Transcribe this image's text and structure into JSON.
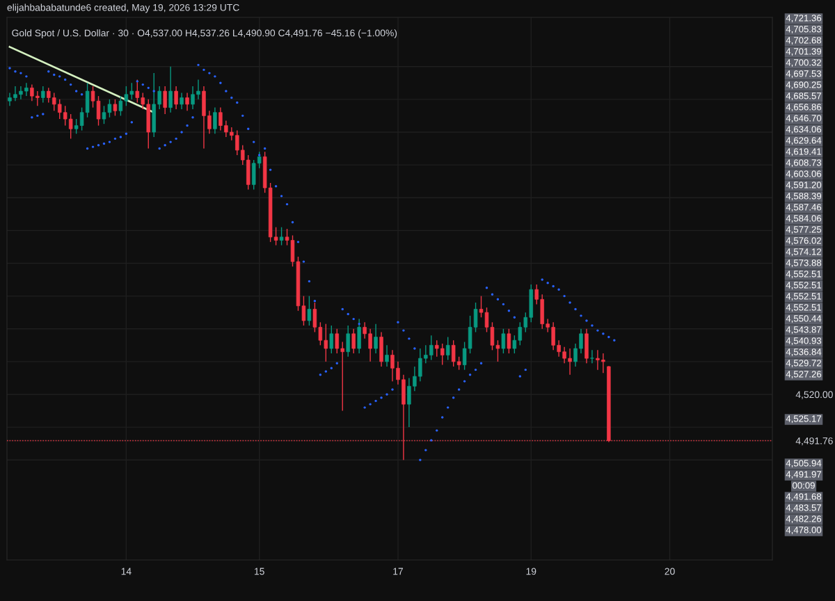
{
  "chart_data": {
    "type": "candlestick",
    "title": "Gold Spot / U.S. Dollar · 30 · O4,537.00 H4,537.26 L4,490.90 C4,491.76 −45.16 (−1.00%)",
    "subtitle": "elijahbababatunde6 created, May 19, 2026 13:29 UTC",
    "categories": [
      null,
      null,
      null,
      null,
      null,
      null,
      null,
      null,
      null,
      null,
      null,
      null,
      null,
      null,
      null,
      null,
      null,
      null,
      null,
      null,
      null,
      "14",
      null,
      null,
      null,
      null,
      null,
      null,
      null,
      null,
      null,
      null,
      null,
      null,
      null,
      null,
      null,
      null,
      null,
      null,
      null,
      null,
      null,
      null,
      null,
      "15",
      null,
      null,
      null,
      null,
      null,
      null,
      null,
      null,
      null,
      null,
      null,
      null,
      null,
      null,
      null,
      null,
      null,
      null,
      null,
      null,
      null,
      null,
      null,
      null,
      "17",
      null,
      null,
      null,
      null,
      null,
      null,
      null,
      null,
      null,
      null,
      null,
      null,
      null,
      null,
      null,
      null,
      null,
      null,
      null,
      null,
      null,
      null,
      null,
      "19",
      null,
      null,
      null,
      null,
      null,
      null,
      null,
      null,
      null,
      null,
      null,
      null,
      null,
      null,
      null,
      null,
      null,
      null,
      null,
      null,
      null,
      null,
      null,
      null,
      "20",
      null,
      null,
      null,
      null,
      null,
      null,
      null,
      null,
      null,
      null,
      null,
      null,
      null,
      null,
      null,
      null,
      null,
      null
    ],
    "ohlc": [
      [
        4699,
        4704,
        4696,
        4701
      ],
      [
        4701,
        4708,
        4699,
        4703
      ],
      [
        4703,
        4708,
        4700,
        4705
      ],
      [
        4705,
        4710,
        4702,
        4707
      ],
      [
        4707,
        4709,
        4699,
        4702
      ],
      [
        4702,
        4705,
        4696,
        4701
      ],
      [
        4701,
        4708,
        4698,
        4705
      ],
      [
        4705,
        4707,
        4698,
        4701
      ],
      [
        4701,
        4704,
        4693,
        4697
      ],
      [
        4697,
        4700,
        4688,
        4692
      ],
      [
        4692,
        4696,
        4684,
        4688
      ],
      [
        4688,
        4691,
        4676,
        4682
      ],
      [
        4682,
        4688,
        4679,
        4684
      ],
      [
        4684,
        4695,
        4681,
        4692
      ],
      [
        4692,
        4710,
        4689,
        4705
      ],
      [
        4705,
        4708,
        4695,
        4699
      ],
      [
        4699,
        4702,
        4684,
        4688
      ],
      [
        4688,
        4696,
        4685,
        4692
      ],
      [
        4692,
        4700,
        4689,
        4697
      ],
      [
        4697,
        4700,
        4690,
        4693
      ],
      [
        4693,
        4702,
        4690,
        4699
      ],
      [
        4699,
        4708,
        4696,
        4703
      ],
      [
        4703,
        4710,
        4700,
        4705
      ],
      [
        4705,
        4712,
        4698,
        4701
      ],
      [
        4701,
        4704,
        4694,
        4697
      ],
      [
        4697,
        4700,
        4670,
        4680
      ],
      [
        4680,
        4716,
        4677,
        4697
      ],
      [
        4697,
        4708,
        4694,
        4705
      ],
      [
        4705,
        4708,
        4691,
        4695
      ],
      [
        4695,
        4720,
        4692,
        4705
      ],
      [
        4705,
        4708,
        4694,
        4697
      ],
      [
        4697,
        4704,
        4694,
        4701
      ],
      [
        4701,
        4704,
        4693,
        4697
      ],
      [
        4697,
        4708,
        4694,
        4703
      ],
      [
        4703,
        4712,
        4700,
        4705
      ],
      [
        4705,
        4708,
        4670,
        4690
      ],
      [
        4690,
        4693,
        4679,
        4682
      ],
      [
        4682,
        4695,
        4679,
        4692
      ],
      [
        4692,
        4695,
        4681,
        4684
      ],
      [
        4684,
        4687,
        4677,
        4680
      ],
      [
        4680,
        4683,
        4675,
        4678
      ],
      [
        4678,
        4681,
        4666,
        4669
      ],
      [
        4669,
        4672,
        4660,
        4663
      ],
      [
        4663,
        4666,
        4645,
        4648
      ],
      [
        4648,
        4663,
        4645,
        4661
      ],
      [
        4661,
        4668,
        4658,
        4665
      ],
      [
        4665,
        4668,
        4643,
        4646
      ],
      [
        4646,
        4649,
        4613,
        4616
      ],
      [
        4616,
        4622,
        4611,
        4614
      ],
      [
        4614,
        4622,
        4611,
        4616
      ],
      [
        4616,
        4621,
        4611,
        4614
      ],
      [
        4614,
        4617,
        4598,
        4601
      ],
      [
        4601,
        4604,
        4571,
        4574
      ],
      [
        4574,
        4580,
        4562,
        4565
      ],
      [
        4565,
        4580,
        4562,
        4572
      ],
      [
        4572,
        4576,
        4558,
        4561
      ],
      [
        4561,
        4564,
        4550,
        4553
      ],
      [
        4553,
        4563,
        4540,
        4548
      ],
      [
        4548,
        4562,
        4545,
        4557
      ],
      [
        4557,
        4560,
        4545,
        4548
      ],
      [
        4548,
        4552,
        4510,
        4546
      ],
      [
        4546,
        4562,
        4543,
        4557
      ],
      [
        4557,
        4560,
        4545,
        4548
      ],
      [
        4548,
        4566,
        4545,
        4561
      ],
      [
        4561,
        4564,
        4554,
        4557
      ],
      [
        4557,
        4560,
        4540,
        4548
      ],
      [
        4548,
        4563,
        4545,
        4555
      ],
      [
        4555,
        4558,
        4537,
        4540
      ],
      [
        4540,
        4550,
        4537,
        4544
      ],
      [
        4544,
        4547,
        4528,
        4536
      ],
      [
        4536,
        4540,
        4526,
        4529
      ],
      [
        4529,
        4532,
        4480,
        4514
      ],
      [
        4514,
        4530,
        4500,
        4525
      ],
      [
        4525,
        4537,
        4522,
        4531
      ],
      [
        4531,
        4548,
        4528,
        4542
      ],
      [
        4542,
        4550,
        4539,
        4544
      ],
      [
        4544,
        4556,
        4541,
        4550
      ],
      [
        4550,
        4553,
        4543,
        4548
      ],
      [
        4548,
        4551,
        4538,
        4544
      ],
      [
        4544,
        4555,
        4541,
        4550
      ],
      [
        4550,
        4553,
        4537,
        4540
      ],
      [
        4540,
        4543,
        4535,
        4538
      ],
      [
        4538,
        4552,
        4535,
        4548
      ],
      [
        4548,
        4568,
        4545,
        4561
      ],
      [
        4561,
        4576,
        4558,
        4572
      ],
      [
        4572,
        4580,
        4567,
        4570
      ],
      [
        4570,
        4573,
        4558,
        4561
      ],
      [
        4561,
        4564,
        4547,
        4550
      ],
      [
        4550,
        4553,
        4540,
        4548
      ],
      [
        4548,
        4560,
        4545,
        4557
      ],
      [
        4557,
        4560,
        4545,
        4548
      ],
      [
        4548,
        4556,
        4545,
        4553
      ],
      [
        4553,
        4564,
        4550,
        4561
      ],
      [
        4561,
        4570,
        4558,
        4567
      ],
      [
        4567,
        4587,
        4564,
        4584
      ],
      [
        4584,
        4587,
        4575,
        4578
      ],
      [
        4578,
        4581,
        4560,
        4563
      ],
      [
        4563,
        4566,
        4558,
        4561
      ],
      [
        4561,
        4564,
        4547,
        4550
      ],
      [
        4550,
        4553,
        4543,
        4546
      ],
      [
        4546,
        4549,
        4539,
        4542
      ],
      [
        4542,
        4548,
        4532,
        4540
      ],
      [
        4540,
        4551,
        4537,
        4548
      ],
      [
        4548,
        4560,
        4545,
        4557
      ],
      [
        4557,
        4560,
        4539,
        4542
      ],
      [
        4542,
        4547,
        4539,
        4542
      ],
      [
        4542,
        4547,
        4535,
        4541
      ],
      [
        4541,
        4545,
        4533,
        4540
      ],
      [
        4537.0,
        4537.26,
        4490.9,
        4491.76
      ],
      null,
      null,
      null,
      null,
      null,
      null,
      null,
      null,
      null,
      null,
      null,
      null,
      null,
      null,
      null,
      null,
      null,
      null,
      null,
      null,
      null,
      null,
      null,
      null,
      null,
      null,
      null,
      null,
      null
    ],
    "series": [
      {
        "type": "scatter",
        "color": "#2962ff",
        "values": [
          4719,
          4717,
          4716,
          4714,
          4689,
          4690,
          4691,
          4717,
          4715,
          4714,
          4712,
          4709,
          4705,
          4703,
          4670,
          4671,
          4672,
          4673,
          4674,
          4676,
          4677,
          4679,
          4686,
          4711,
          4709,
          4707,
          4705,
          4670,
          4672,
          4674,
          4676,
          4680,
          4684,
          4689,
          4721,
          4718,
          4716,
          4714,
          4710,
          4705,
          4701,
          4698,
          4690,
          4682,
          4674,
          4666,
          4670,
          4657,
          4647,
          4641,
          4636,
          4625,
          4613,
          4601,
          4589,
          4577,
          4532,
          4534,
          4536,
          4539,
          4572,
          4569,
          4566,
          4563,
          4512,
          4514,
          4516,
          4518,
          4520,
          4523,
          4564,
          4559,
          4554,
          4548,
          4480,
          4486,
          4492,
          4498,
          4506,
          4512,
          4518,
          4523,
          4528,
          4532,
          4535,
          4539,
          4585,
          4581,
          4578,
          4575,
          4571,
          4567,
          4531,
          4535,
          null,
          null,
          4590,
          4588,
          4586,
          4584,
          4580,
          4576,
          4572,
          4568,
          4565,
          4562,
          4559,
          4557,
          4555,
          4553,
          null,
          null,
          null,
          null,
          null,
          null,
          null,
          null,
          null,
          null,
          null,
          null,
          null,
          null,
          null,
          null,
          null,
          null,
          null,
          null,
          null,
          null,
          null,
          null,
          null,
          null,
          null,
          null
        ]
      },
      {
        "type": "line",
        "color": "#d4f0c0",
        "values": [
          4732,
          null,
          null,
          null,
          null,
          null,
          null,
          null,
          null,
          null,
          null,
          null,
          null,
          null,
          null,
          null,
          null,
          null,
          null,
          null,
          null,
          null,
          null,
          null,
          null,
          null,
          4692,
          null,
          null,
          null,
          null,
          null,
          null,
          null,
          null,
          null,
          null,
          null,
          null,
          null,
          null,
          null,
          null,
          null,
          null,
          null,
          null,
          null,
          null,
          null,
          null,
          null,
          null,
          null,
          null,
          null,
          null,
          null,
          null,
          null,
          null,
          null,
          null,
          null,
          null,
          null,
          null,
          null,
          null,
          null,
          null,
          null,
          null,
          null,
          null,
          null,
          null,
          null,
          null,
          null,
          null,
          null,
          null,
          null,
          null,
          null,
          null,
          null,
          null,
          null,
          null,
          null,
          null,
          null,
          null,
          null,
          null,
          null,
          null,
          null,
          null,
          null,
          null,
          null,
          null,
          null,
          null,
          null,
          null,
          null,
          null,
          null,
          null,
          null,
          null,
          null,
          null,
          null,
          null,
          null,
          null,
          null,
          null,
          null,
          null,
          null,
          null,
          null,
          null,
          null,
          null,
          null,
          null,
          null,
          null,
          null,
          null,
          null
        ]
      }
    ],
    "ylim": [
      4419,
      4750
    ],
    "yticks": [
      {
        "value": 4480,
        "label": null
      },
      {
        "value": 4491.76,
        "label": "4,491.76"
      },
      {
        "value": 4500,
        "label": null
      },
      {
        "value": 4520,
        "label": "4,520.00"
      },
      {
        "value": 4540,
        "label": null
      },
      {
        "value": 4560,
        "label": null
      },
      {
        "value": 4580,
        "label": null
      },
      {
        "value": 4600,
        "label": null
      },
      {
        "value": 4620,
        "label": null
      },
      {
        "value": 4640,
        "label": null
      },
      {
        "value": 4660,
        "label": null
      },
      {
        "value": 4680,
        "label": null
      },
      {
        "value": 4700,
        "label": null
      },
      {
        "value": 4720,
        "label": null
      }
    ],
    "ref_lines": [
      {
        "axis": "y",
        "value": 4491.76,
        "color": "#f23645",
        "line_style": "dotted"
      }
    ],
    "grid": true,
    "annotations": [
      "4,721.36",
      "4,705.83",
      "4,702.68",
      "4,701.39",
      "4,700.32",
      "4,697.53",
      "4,690.25",
      "4,685.57",
      "4,656.86",
      "4,646.70",
      "4,634.06",
      "4,629.64",
      "4,619.41",
      "4,608.73",
      "4,603.06",
      "4,591.20",
      "4,588.39",
      "4,587.46",
      "4,584.06",
      "4,577.25",
      "4,576.02",
      "4,574.12",
      "4,573.88",
      "4,552.51",
      "4,552.51",
      "4,552.51",
      "4,552.51",
      "4,550.44",
      "4,543.87",
      "4,540.93",
      "4,536.84",
      "4,529.72",
      "4,527.26",
      "4,525.17",
      "4,505.94",
      "4,491.97",
      "00:09",
      "4,491.68",
      "4,483.57",
      "4,482.26",
      "4,478.00"
    ]
  }
}
